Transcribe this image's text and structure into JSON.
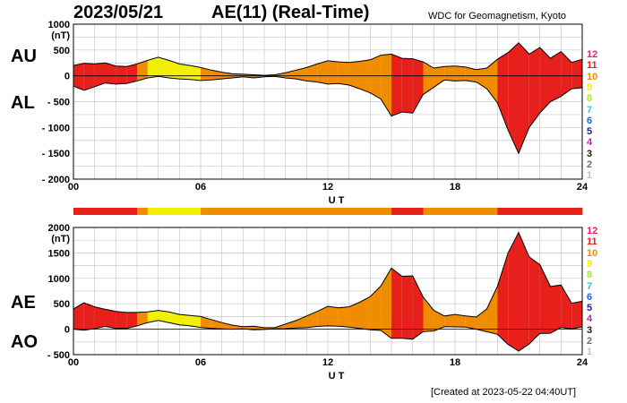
{
  "header": {
    "date": "2023/05/21",
    "title": "AE(11) (Real-Time)",
    "org": "WDC for Geomagnetism, Kyoto",
    "created": "[Created at 2023-05-22 04:40UT]"
  },
  "colors": {
    "levels": {
      "12": "#e8206c",
      "11": "#e8201c",
      "10": "#f08c00",
      "9": "#f0f000",
      "8": "#a0f020",
      "7": "#20d0d0",
      "6": "#2060f0",
      "5": "#2020a0",
      "4": "#c020c0",
      "3": "#202020",
      "2": "#707070",
      "1": "#c0c0c0"
    }
  },
  "level_key": [
    "12",
    "11",
    "10",
    "9",
    "8",
    "7",
    "6",
    "5",
    "4",
    "3",
    "2",
    "1"
  ],
  "chart_data": [
    {
      "type": "area",
      "panel": "AU/AL",
      "labels_left": [
        "AU",
        "AL"
      ],
      "ylabel": "(nT)",
      "xlabel": "U T",
      "xlim": [
        0,
        24
      ],
      "ylim": [
        -2000,
        1000
      ],
      "x_ticks": [
        "00",
        "06",
        "12",
        "18",
        "24"
      ],
      "y_ticks": [
        "1000",
        "500",
        "0",
        "- 500",
        "- 1000",
        "- 1500",
        "- 2000"
      ],
      "y_tick_values": [
        1000,
        500,
        0,
        -500,
        -1000,
        -1500,
        -2000
      ],
      "grid": true,
      "x": [
        0,
        0.5,
        1,
        1.5,
        2,
        2.5,
        3,
        3.5,
        4,
        4.5,
        5,
        5.5,
        6,
        6.5,
        7,
        7.5,
        8,
        8.5,
        9,
        9.5,
        10,
        10.5,
        11,
        11.5,
        12,
        12.5,
        13,
        13.5,
        14,
        14.5,
        15,
        15.5,
        16,
        16.5,
        17,
        17.5,
        18,
        18.5,
        19,
        19.5,
        20,
        20.5,
        21,
        21.5,
        22,
        22.5,
        23,
        23.5,
        24
      ],
      "series": [
        {
          "name": "AU",
          "values": [
            200,
            240,
            230,
            250,
            190,
            180,
            230,
            300,
            360,
            300,
            230,
            200,
            160,
            110,
            70,
            40,
            30,
            20,
            10,
            20,
            60,
            110,
            160,
            230,
            290,
            270,
            260,
            280,
            310,
            400,
            420,
            340,
            330,
            270,
            150,
            180,
            190,
            170,
            120,
            150,
            320,
            450,
            640,
            420,
            550,
            340,
            470,
            260,
            320
          ]
        },
        {
          "name": "AL",
          "values": [
            -200,
            -280,
            -210,
            -140,
            -160,
            -150,
            -100,
            -40,
            -10,
            -40,
            -60,
            -70,
            -90,
            -80,
            -60,
            -40,
            -20,
            -40,
            -20,
            -10,
            -40,
            -60,
            -100,
            -120,
            -160,
            -150,
            -180,
            -250,
            -330,
            -450,
            -780,
            -700,
            -720,
            -360,
            -220,
            -80,
            -100,
            -90,
            -120,
            -250,
            -520,
            -1050,
            -1500,
            -1000,
            -720,
            -500,
            -400,
            -250,
            -230
          ]
        }
      ],
      "activity_levels": [
        11,
        11,
        11,
        11,
        11,
        11,
        10,
        9,
        9,
        9,
        9,
        9,
        10,
        10,
        10,
        10,
        10,
        10,
        10,
        10,
        10,
        10,
        10,
        10,
        10,
        10,
        10,
        10,
        10,
        10,
        11,
        11,
        11,
        10,
        10,
        10,
        10,
        10,
        10,
        10,
        11,
        11,
        11,
        11,
        11,
        11,
        11,
        11,
        11
      ]
    },
    {
      "type": "area",
      "panel": "AE/AO",
      "labels_left": [
        "AE",
        "AO"
      ],
      "ylabel": "(nT)",
      "xlabel": "U T",
      "xlim": [
        0,
        24
      ],
      "ylim": [
        -500,
        2000
      ],
      "x_ticks": [
        "00",
        "06",
        "12",
        "18",
        "24"
      ],
      "y_ticks": [
        "2000",
        "1500",
        "1000",
        "500",
        "0",
        "- 500"
      ],
      "y_tick_values": [
        2000,
        1500,
        1000,
        500,
        0,
        -500
      ],
      "grid": true,
      "x": [
        0,
        0.5,
        1,
        1.5,
        2,
        2.5,
        3,
        3.5,
        4,
        4.5,
        5,
        5.5,
        6,
        6.5,
        7,
        7.5,
        8,
        8.5,
        9,
        9.5,
        10,
        10.5,
        11,
        11.5,
        12,
        12.5,
        13,
        13.5,
        14,
        14.5,
        15,
        15.5,
        16,
        16.5,
        17,
        17.5,
        18,
        18.5,
        19,
        19.5,
        20,
        20.5,
        21,
        21.5,
        22,
        22.5,
        23,
        23.5,
        24
      ],
      "series": [
        {
          "name": "AE",
          "values": [
            400,
            520,
            440,
            390,
            350,
            330,
            330,
            340,
            370,
            340,
            290,
            270,
            250,
            190,
            130,
            80,
            50,
            60,
            30,
            30,
            100,
            170,
            260,
            350,
            450,
            420,
            440,
            530,
            640,
            850,
            1200,
            1040,
            1050,
            630,
            370,
            260,
            290,
            260,
            240,
            400,
            840,
            1500,
            1900,
            1420,
            1270,
            840,
            870,
            510,
            550
          ]
        },
        {
          "name": "AO",
          "values": [
            0,
            -20,
            10,
            55,
            15,
            15,
            65,
            130,
            175,
            130,
            85,
            65,
            35,
            15,
            5,
            0,
            5,
            -10,
            -5,
            5,
            10,
            25,
            30,
            55,
            65,
            60,
            40,
            15,
            -10,
            -25,
            -180,
            -180,
            -195,
            -45,
            -35,
            50,
            45,
            40,
            0,
            -50,
            -100,
            -300,
            -430,
            -290,
            -85,
            -80,
            35,
            5,
            45
          ]
        }
      ],
      "activity_levels": [
        11,
        11,
        11,
        11,
        11,
        11,
        10,
        9,
        9,
        9,
        9,
        9,
        10,
        10,
        10,
        10,
        10,
        10,
        10,
        10,
        10,
        10,
        10,
        10,
        10,
        10,
        10,
        10,
        10,
        10,
        11,
        11,
        11,
        10,
        10,
        10,
        10,
        10,
        10,
        10,
        11,
        11,
        11,
        11,
        11,
        11,
        11,
        11,
        11
      ]
    }
  ],
  "activity_bar": {
    "levels": [
      11,
      11,
      11,
      11,
      11,
      11,
      10,
      9,
      9,
      9,
      9,
      9,
      10,
      10,
      10,
      10,
      10,
      10,
      10,
      10,
      10,
      10,
      10,
      10,
      10,
      10,
      10,
      10,
      10,
      10,
      11,
      11,
      11,
      10,
      10,
      10,
      10,
      10,
      10,
      10,
      11,
      11,
      11,
      11,
      11,
      11,
      11,
      11,
      11
    ]
  }
}
